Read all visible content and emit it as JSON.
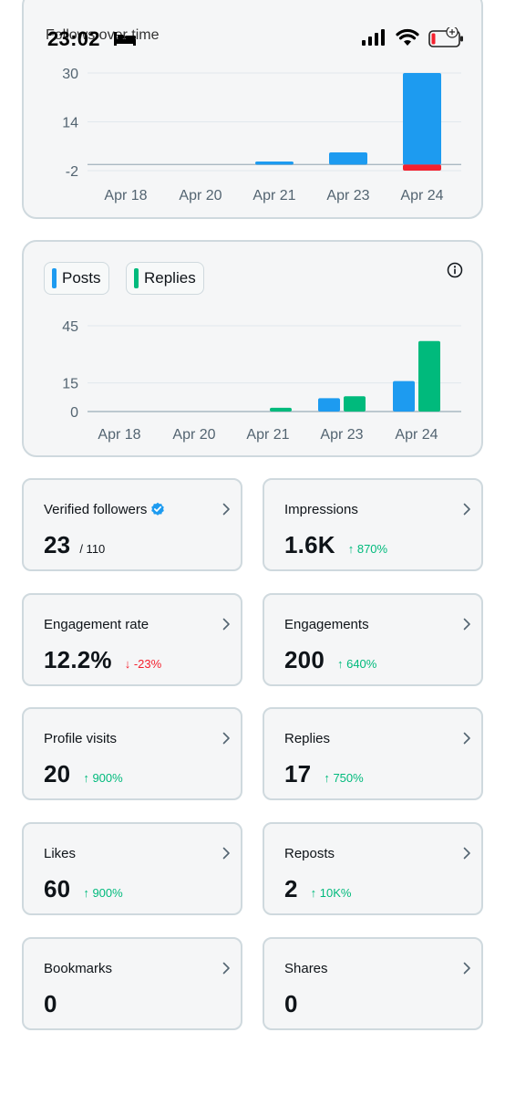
{
  "status_bar": {
    "time": "23:02",
    "icons": [
      "bed-icon",
      "signal-icon",
      "wifi-icon",
      "battery-icon"
    ]
  },
  "colors": {
    "blue": "#1d9bf0",
    "green": "#00ba7c",
    "red": "#f4212e",
    "grid": "#e1e8ed",
    "axis": "#536471"
  },
  "follows_card": {
    "title": "Follows over time"
  },
  "posts_card": {
    "legend": [
      {
        "label": "Posts",
        "color": "#1d9bf0"
      },
      {
        "label": "Replies",
        "color": "#00ba7c"
      }
    ]
  },
  "chart_data": [
    {
      "type": "bar",
      "title": "Follows over time",
      "categories": [
        "Apr 18",
        "Apr 20",
        "Apr 21",
        "Apr 23",
        "Apr 24"
      ],
      "y_ticks": [
        30,
        14,
        -2
      ],
      "ylim": [
        -2,
        30
      ],
      "series": [
        {
          "color": "#1d9bf0",
          "values": [
            0,
            0,
            1,
            4,
            30
          ]
        },
        {
          "color": "#f4212e",
          "values": [
            0,
            0,
            0,
            0,
            -2
          ]
        }
      ],
      "grid": true
    },
    {
      "type": "bar",
      "categories": [
        "Apr 18",
        "Apr 20",
        "Apr 21",
        "Apr 23",
        "Apr 24"
      ],
      "y_ticks": [
        45,
        15,
        0
      ],
      "ylim": [
        0,
        45
      ],
      "series": [
        {
          "name": "Posts",
          "color": "#1d9bf0",
          "values": [
            0,
            0,
            0,
            7,
            16
          ]
        },
        {
          "name": "Replies",
          "color": "#00ba7c",
          "values": [
            0,
            0,
            2,
            8,
            37
          ]
        }
      ],
      "grid": true,
      "legend": "top-left"
    }
  ],
  "stats": [
    {
      "label": "Verified followers",
      "value": "23",
      "sub": "/ 110",
      "change": "",
      "dir": "",
      "verified": true
    },
    {
      "label": "Impressions",
      "value": "1.6K",
      "sub": "",
      "change": "↑ 870%",
      "dir": "up"
    },
    {
      "label": "Engagement rate",
      "value": "12.2%",
      "sub": "",
      "change": "↓ -23%",
      "dir": "down"
    },
    {
      "label": "Engagements",
      "value": "200",
      "sub": "",
      "change": "↑ 640%",
      "dir": "up"
    },
    {
      "label": "Profile visits",
      "value": "20",
      "sub": "",
      "change": "↑ 900%",
      "dir": "up"
    },
    {
      "label": "Replies",
      "value": "17",
      "sub": "",
      "change": "↑ 750%",
      "dir": "up"
    },
    {
      "label": "Likes",
      "value": "60",
      "sub": "",
      "change": "↑ 900%",
      "dir": "up"
    },
    {
      "label": "Reposts",
      "value": "2",
      "sub": "",
      "change": "↑ 10K%",
      "dir": "up"
    },
    {
      "label": "Bookmarks",
      "value": "0",
      "sub": "",
      "change": "",
      "dir": ""
    },
    {
      "label": "Shares",
      "value": "0",
      "sub": "",
      "change": "",
      "dir": ""
    }
  ]
}
